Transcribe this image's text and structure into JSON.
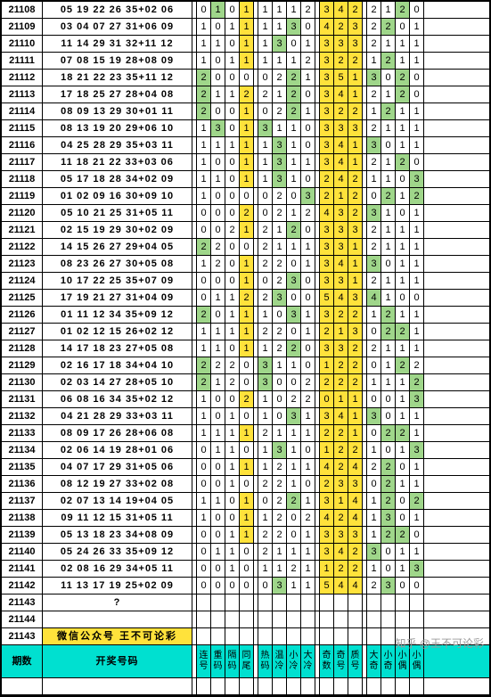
{
  "colors": {
    "green": "#9fd68a",
    "yellow": "#ffe23b",
    "header": "#00e0d0",
    "border": "#000"
  },
  "header": {
    "period": "期数",
    "code": "开奖号码",
    "stats": [
      "连号",
      "重码",
      "隔码",
      "同尾",
      "热码",
      "温冷",
      "小冷",
      "大冷",
      "奇数",
      "奇号",
      "质号",
      "大奇",
      "小奇",
      "小偶",
      "小偶"
    ]
  },
  "special": {
    "promo": "微信公众号 王不可论彩",
    "blank": "?"
  },
  "watermark": "知乎 @王不可论彩",
  "groups": [
    [
      0,
      1,
      2,
      3
    ],
    [
      4,
      5,
      6,
      7
    ],
    [
      8,
      9,
      10
    ],
    [
      11,
      12,
      13,
      14
    ]
  ],
  "rows": [
    {
      "id": "21108",
      "code": "05 19 22 26 35+02 06",
      "v": [
        0,
        1,
        0,
        1,
        1,
        1,
        1,
        2,
        3,
        4,
        2,
        2,
        1,
        2,
        0
      ],
      "c": [
        "",
        "g",
        "",
        "y",
        "",
        "",
        "",
        "",
        "y",
        "y",
        "y",
        "",
        "",
        "g",
        ""
      ]
    },
    {
      "id": "21109",
      "code": "03 04 07 27 31+06 09",
      "v": [
        1,
        0,
        1,
        1,
        1,
        1,
        3,
        0,
        4,
        2,
        3,
        2,
        2,
        0,
        1
      ],
      "c": [
        "",
        "",
        "",
        "y",
        "",
        "",
        "g",
        "",
        "y",
        "y",
        "y",
        "",
        "g",
        "",
        ""
      ]
    },
    {
      "id": "21110",
      "code": "11 14 29 31 32+11 12",
      "v": [
        1,
        1,
        0,
        1,
        1,
        3,
        0,
        1,
        3,
        3,
        3,
        2,
        1,
        1,
        1
      ],
      "c": [
        "",
        "",
        "",
        "y",
        "",
        "g",
        "",
        "",
        "y",
        "y",
        "y",
        "",
        "",
        "",
        ""
      ]
    },
    {
      "id": "21111",
      "code": "07 08 15 19 28+08 09",
      "v": [
        1,
        0,
        1,
        1,
        1,
        1,
        1,
        2,
        3,
        2,
        2,
        1,
        2,
        1,
        1
      ],
      "c": [
        "",
        "",
        "",
        "y",
        "",
        "",
        "",
        "",
        "y",
        "y",
        "y",
        "",
        "g",
        "",
        ""
      ]
    },
    {
      "id": "21112",
      "code": "18 21 22 23 35+11 12",
      "v": [
        2,
        0,
        0,
        0,
        0,
        2,
        2,
        1,
        3,
        5,
        1,
        3,
        0,
        2,
        0
      ],
      "c": [
        "g",
        "",
        "",
        "",
        "",
        "",
        "g",
        "",
        "y",
        "y",
        "y",
        "g",
        "",
        "g",
        ""
      ]
    },
    {
      "id": "21113",
      "code": "17 18 25 27 28+04 08",
      "v": [
        2,
        1,
        1,
        2,
        2,
        1,
        2,
        0,
        3,
        4,
        1,
        2,
        1,
        2,
        0
      ],
      "c": [
        "g",
        "",
        "",
        "y",
        "",
        "",
        "g",
        "",
        "y",
        "y",
        "y",
        "",
        "",
        "g",
        ""
      ]
    },
    {
      "id": "21114",
      "code": "08 09 13 29 30+01 11",
      "v": [
        2,
        0,
        0,
        1,
        0,
        2,
        2,
        1,
        3,
        2,
        2,
        1,
        2,
        1,
        1
      ],
      "c": [
        "g",
        "",
        "",
        "y",
        "",
        "",
        "g",
        "",
        "y",
        "y",
        "y",
        "",
        "g",
        "",
        ""
      ]
    },
    {
      "id": "21115",
      "code": "08 13 19 20 29+06 10",
      "v": [
        1,
        3,
        0,
        1,
        3,
        1,
        1,
        0,
        3,
        3,
        3,
        2,
        1,
        1,
        1
      ],
      "c": [
        "",
        "g",
        "",
        "y",
        "g",
        "",
        "",
        "",
        "y",
        "y",
        "y",
        "",
        "",
        "",
        ""
      ]
    },
    {
      "id": "21116",
      "code": "04 25 28 29 35+03 11",
      "v": [
        1,
        1,
        1,
        1,
        1,
        3,
        1,
        0,
        3,
        4,
        1,
        3,
        0,
        1,
        1
      ],
      "c": [
        "",
        "",
        "",
        "y",
        "",
        "g",
        "",
        "",
        "y",
        "y",
        "y",
        "g",
        "",
        "",
        ""
      ]
    },
    {
      "id": "21117",
      "code": "11 18 21 22 33+03 06",
      "v": [
        1,
        0,
        0,
        1,
        1,
        3,
        1,
        1,
        3,
        4,
        1,
        2,
        1,
        2,
        0
      ],
      "c": [
        "",
        "",
        "",
        "y",
        "",
        "g",
        "",
        "",
        "y",
        "y",
        "y",
        "",
        "",
        "g",
        ""
      ]
    },
    {
      "id": "21118",
      "code": "05 17 18 28 34+02 09",
      "v": [
        1,
        1,
        0,
        1,
        1,
        3,
        1,
        0,
        2,
        4,
        2,
        1,
        1,
        0,
        3
      ],
      "c": [
        "",
        "",
        "",
        "y",
        "",
        "g",
        "",
        "",
        "y",
        "y",
        "y",
        "",
        "",
        "",
        "g"
      ]
    },
    {
      "id": "21119",
      "code": "01 02 09 16 30+09 10",
      "v": [
        1,
        0,
        0,
        0,
        0,
        2,
        0,
        3,
        2,
        1,
        2,
        0,
        2,
        1,
        2
      ],
      "c": [
        "",
        "",
        "",
        "",
        "",
        "",
        "",
        "g",
        "y",
        "y",
        "y",
        "",
        "g",
        "",
        "g"
      ]
    },
    {
      "id": "21120",
      "code": "05 10 21 25 31+05 11",
      "v": [
        0,
        0,
        0,
        2,
        0,
        2,
        1,
        2,
        4,
        3,
        2,
        3,
        1,
        0,
        1
      ],
      "c": [
        "",
        "",
        "",
        "y",
        "",
        "",
        "",
        "",
        "y",
        "y",
        "y",
        "g",
        "",
        "",
        ""
      ]
    },
    {
      "id": "21121",
      "code": "02 15 19 29 30+02 09",
      "v": [
        0,
        0,
        2,
        1,
        2,
        1,
        2,
        0,
        3,
        3,
        3,
        2,
        1,
        1,
        1
      ],
      "c": [
        "",
        "",
        "",
        "y",
        "",
        "",
        "g",
        "",
        "y",
        "y",
        "y",
        "",
        "",
        "",
        ""
      ]
    },
    {
      "id": "21122",
      "code": "14 15 26 27 29+04 05",
      "v": [
        2,
        2,
        0,
        0,
        2,
        1,
        1,
        1,
        3,
        3,
        1,
        2,
        1,
        1,
        1
      ],
      "c": [
        "g",
        "",
        "",
        "",
        "",
        "",
        "",
        "",
        "y",
        "y",
        "y",
        "",
        "",
        "",
        ""
      ]
    },
    {
      "id": "21123",
      "code": "08 23 26 27 30+05 08",
      "v": [
        1,
        2,
        0,
        1,
        2,
        2,
        0,
        1,
        3,
        4,
        1,
        3,
        0,
        1,
        1
      ],
      "c": [
        "",
        "",
        "",
        "y",
        "",
        "",
        "",
        "",
        "y",
        "y",
        "y",
        "g",
        "",
        "",
        ""
      ]
    },
    {
      "id": "21124",
      "code": "10 17 22 25 35+07 09",
      "v": [
        0,
        0,
        0,
        1,
        0,
        2,
        3,
        0,
        3,
        3,
        1,
        2,
        1,
        1,
        1
      ],
      "c": [
        "",
        "",
        "",
        "y",
        "",
        "",
        "g",
        "",
        "y",
        "y",
        "y",
        "",
        "",
        "",
        ""
      ]
    },
    {
      "id": "21125",
      "code": "17 19 21 27 31+04 09",
      "v": [
        0,
        1,
        1,
        2,
        2,
        3,
        0,
        0,
        5,
        4,
        3,
        4,
        1,
        0,
        0
      ],
      "c": [
        "",
        "",
        "",
        "y",
        "",
        "g",
        "",
        "",
        "y",
        "y",
        "y",
        "g",
        "",
        "",
        ""
      ]
    },
    {
      "id": "21126",
      "code": "01 11 12 34 35+09 12",
      "v": [
        2,
        0,
        1,
        1,
        1,
        0,
        3,
        1,
        3,
        2,
        2,
        1,
        2,
        1,
        1
      ],
      "c": [
        "g",
        "",
        "",
        "y",
        "",
        "",
        "g",
        "",
        "y",
        "y",
        "y",
        "",
        "g",
        "",
        ""
      ]
    },
    {
      "id": "21127",
      "code": "01 02 12 15 26+02 12",
      "v": [
        1,
        1,
        1,
        1,
        2,
        2,
        0,
        1,
        2,
        1,
        3,
        0,
        2,
        2,
        1
      ],
      "c": [
        "",
        "",
        "",
        "y",
        "",
        "",
        "",
        "",
        "y",
        "y",
        "y",
        "",
        "g",
        "g",
        ""
      ]
    },
    {
      "id": "21128",
      "code": "14 17 18 23 27+05 08",
      "v": [
        1,
        1,
        0,
        1,
        1,
        2,
        2,
        0,
        3,
        3,
        2,
        2,
        1,
        1,
        1
      ],
      "c": [
        "",
        "",
        "",
        "y",
        "",
        "",
        "g",
        "",
        "y",
        "y",
        "y",
        "",
        "",
        "",
        ""
      ]
    },
    {
      "id": "21129",
      "code": "02 16 17 18 34+04 10",
      "v": [
        2,
        2,
        2,
        0,
        3,
        1,
        1,
        0,
        1,
        2,
        2,
        0,
        1,
        2,
        2
      ],
      "c": [
        "g",
        "",
        "",
        "",
        "g",
        "",
        "",
        "",
        "y",
        "y",
        "y",
        "",
        "",
        "g",
        ""
      ]
    },
    {
      "id": "21130",
      "code": "02 03 14 27 28+05 10",
      "v": [
        2,
        1,
        2,
        0,
        3,
        0,
        0,
        2,
        2,
        2,
        2,
        1,
        1,
        1,
        2
      ],
      "c": [
        "g",
        "",
        "",
        "",
        "g",
        "",
        "",
        "",
        "y",
        "y",
        "y",
        "",
        "",
        "",
        "g"
      ]
    },
    {
      "id": "21131",
      "code": "06 08 16 34 35+02 12",
      "v": [
        1,
        0,
        0,
        2,
        1,
        0,
        2,
        2,
        0,
        1,
        1,
        0,
        0,
        1,
        3
      ],
      "c": [
        "",
        "",
        "",
        "y",
        "",
        "",
        "",
        "",
        "y",
        "y",
        "y",
        "",
        "",
        "",
        "g"
      ]
    },
    {
      "id": "21132",
      "code": "04 21 28 29 33+03 11",
      "v": [
        1,
        0,
        1,
        0,
        1,
        0,
        3,
        1,
        3,
        4,
        1,
        3,
        0,
        1,
        1
      ],
      "c": [
        "",
        "",
        "",
        "",
        "",
        "",
        "g",
        "",
        "y",
        "y",
        "y",
        "g",
        "",
        "",
        ""
      ]
    },
    {
      "id": "21133",
      "code": "08 09 17 26 28+06 08",
      "v": [
        1,
        1,
        1,
        1,
        2,
        1,
        1,
        1,
        2,
        2,
        1,
        0,
        2,
        2,
        1
      ],
      "c": [
        "",
        "",
        "",
        "y",
        "",
        "",
        "",
        "",
        "y",
        "y",
        "y",
        "",
        "g",
        "g",
        ""
      ]
    },
    {
      "id": "21134",
      "code": "02 06 14 19 28+01 06",
      "v": [
        0,
        1,
        1,
        0,
        1,
        3,
        1,
        0,
        1,
        2,
        2,
        1,
        0,
        1,
        3
      ],
      "c": [
        "",
        "",
        "",
        "",
        "",
        "g",
        "",
        "",
        "y",
        "y",
        "y",
        "",
        "",
        "",
        "g"
      ]
    },
    {
      "id": "21135",
      "code": "04 07 17 29 31+05 06",
      "v": [
        0,
        0,
        1,
        1,
        1,
        2,
        1,
        1,
        4,
        2,
        4,
        2,
        2,
        0,
        1
      ],
      "c": [
        "",
        "",
        "",
        "y",
        "",
        "",
        "",
        "",
        "y",
        "y",
        "y",
        "",
        "g",
        "",
        ""
      ]
    },
    {
      "id": "21136",
      "code": "08 12 19 27 33+02 08",
      "v": [
        0,
        0,
        1,
        0,
        2,
        2,
        1,
        0,
        2,
        3,
        3,
        0,
        2,
        1,
        1
      ],
      "c": [
        "",
        "",
        "",
        "",
        "",
        "",
        "",
        "",
        "y",
        "y",
        "y",
        "",
        "g",
        "",
        ""
      ]
    },
    {
      "id": "21137",
      "code": "02 07 13 14 19+04 05",
      "v": [
        1,
        1,
        0,
        1,
        0,
        2,
        2,
        1,
        3,
        1,
        4,
        1,
        2,
        0,
        2
      ],
      "c": [
        "",
        "",
        "",
        "y",
        "",
        "",
        "g",
        "",
        "y",
        "y",
        "y",
        "",
        "g",
        "",
        "g"
      ]
    },
    {
      "id": "21138",
      "code": "09 11 12 15 31+05 11",
      "v": [
        1,
        0,
        0,
        1,
        1,
        2,
        0,
        2,
        4,
        2,
        4,
        1,
        3,
        0,
        1
      ],
      "c": [
        "",
        "",
        "",
        "y",
        "",
        "",
        "",
        "",
        "y",
        "y",
        "y",
        "",
        "g",
        "",
        ""
      ]
    },
    {
      "id": "21139",
      "code": "05 13 18 23 34+08 09",
      "v": [
        0,
        0,
        1,
        1,
        2,
        2,
        0,
        1,
        3,
        3,
        3,
        1,
        2,
        2,
        0
      ],
      "c": [
        "",
        "",
        "",
        "y",
        "",
        "",
        "",
        "",
        "y",
        "y",
        "y",
        "",
        "g",
        "g",
        ""
      ]
    },
    {
      "id": "21140",
      "code": "05 24 26 33 35+09 12",
      "v": [
        0,
        1,
        1,
        0,
        2,
        1,
        1,
        1,
        3,
        4,
        2,
        3,
        0,
        1,
        1
      ],
      "c": [
        "",
        "",
        "",
        "",
        "",
        "",
        "",
        "",
        "y",
        "y",
        "y",
        "g",
        "",
        "",
        ""
      ]
    },
    {
      "id": "21141",
      "code": "02 08 16 29 34+05 11",
      "v": [
        0,
        0,
        1,
        0,
        1,
        1,
        2,
        1,
        1,
        2,
        2,
        1,
        0,
        1,
        3
      ],
      "c": [
        "",
        "",
        "",
        "",
        "",
        "",
        "",
        "",
        "y",
        "y",
        "y",
        "",
        "",
        "",
        "g"
      ]
    },
    {
      "id": "21142",
      "code": "11 13 17 19 25+02 09",
      "v": [
        0,
        0,
        0,
        0,
        0,
        3,
        1,
        1,
        5,
        4,
        4,
        2,
        3,
        0,
        0
      ],
      "c": [
        "",
        "",
        "",
        "",
        "",
        "g",
        "",
        "",
        "y",
        "y",
        "y",
        "",
        "g",
        "",
        ""
      ]
    },
    {
      "id": "21143",
      "code": "?",
      "v": [
        "",
        "",
        "",
        "",
        "",
        "",
        "",
        "",
        "",
        "",
        "",
        "",
        "",
        "",
        ""
      ],
      "c": [
        "",
        "",
        "",
        "",
        "",
        "",
        "",
        "",
        "",
        "",
        "",
        "",
        "",
        "",
        ""
      ]
    },
    {
      "id": "21144",
      "code": "",
      "v": [
        "",
        "",
        "",
        "",
        "",
        "",
        "",
        "",
        "",
        "",
        "",
        "",
        "",
        "",
        ""
      ],
      "c": [
        "",
        "",
        "",
        "",
        "",
        "",
        "",
        "",
        "",
        "",
        "",
        "",
        "",
        "",
        ""
      ]
    },
    {
      "id": "21143",
      "code": "微信公众号 王不可论彩",
      "wx": true,
      "v": [
        "",
        "",
        "",
        "",
        "",
        "",
        "",
        "",
        "",
        "",
        "",
        "",
        "",
        "",
        ""
      ],
      "c": [
        "",
        "",
        "",
        "",
        "",
        "",
        "",
        "",
        "",
        "",
        "",
        "",
        "",
        "",
        ""
      ]
    }
  ]
}
